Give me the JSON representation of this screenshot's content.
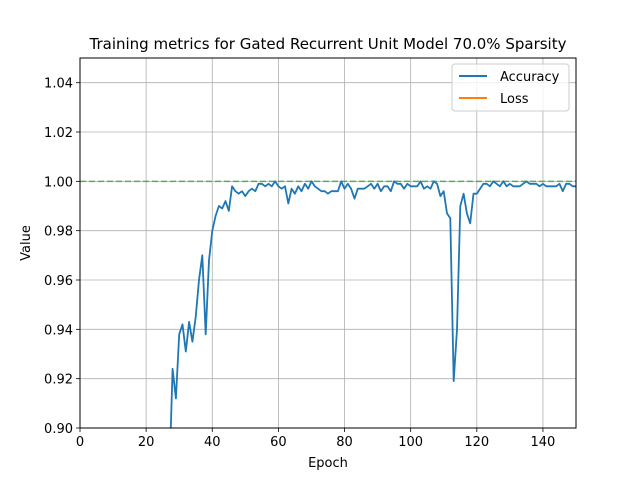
{
  "chart_data": {
    "type": "line",
    "title": "Training metrics for Gated Recurrent Unit Model 70.0% Sparsity",
    "xlabel": "Epoch",
    "ylabel": "Value",
    "xlim": [
      0,
      150
    ],
    "ylim": [
      0.9,
      1.05
    ],
    "xticks": [
      0,
      20,
      40,
      60,
      80,
      100,
      120,
      140
    ],
    "yticks": [
      0.9,
      0.92,
      0.94,
      0.96,
      0.98,
      1.0,
      1.02,
      1.04
    ],
    "grid": true,
    "legend_position": "top-right",
    "reference_line": {
      "y": 1.0,
      "color": "#2ca02c",
      "style": "dashed"
    },
    "series": [
      {
        "name": "Accuracy",
        "color": "#1f77b4",
        "points": [
          [
            27,
            0.88
          ],
          [
            28,
            0.924
          ],
          [
            29,
            0.912
          ],
          [
            30,
            0.938
          ],
          [
            31,
            0.942
          ],
          [
            32,
            0.931
          ],
          [
            33,
            0.943
          ],
          [
            34,
            0.935
          ],
          [
            35,
            0.945
          ],
          [
            36,
            0.96
          ],
          [
            37,
            0.97
          ],
          [
            38,
            0.938
          ],
          [
            39,
            0.968
          ],
          [
            40,
            0.98
          ],
          [
            41,
            0.986
          ],
          [
            42,
            0.99
          ],
          [
            43,
            0.989
          ],
          [
            44,
            0.992
          ],
          [
            45,
            0.988
          ],
          [
            46,
            0.998
          ],
          [
            47,
            0.996
          ],
          [
            48,
            0.995
          ],
          [
            49,
            0.996
          ],
          [
            50,
            0.994
          ],
          [
            51,
            0.996
          ],
          [
            52,
            0.997
          ],
          [
            53,
            0.996
          ],
          [
            54,
            0.999
          ],
          [
            55,
            0.999
          ],
          [
            56,
            0.998
          ],
          [
            57,
            0.999
          ],
          [
            58,
            0.998
          ],
          [
            59,
            1.0
          ],
          [
            60,
            0.998
          ],
          [
            61,
            0.997
          ],
          [
            62,
            0.998
          ],
          [
            63,
            0.991
          ],
          [
            64,
            0.997
          ],
          [
            65,
            0.995
          ],
          [
            66,
            0.998
          ],
          [
            67,
            0.996
          ],
          [
            68,
            0.999
          ],
          [
            69,
            0.997
          ],
          [
            70,
            1.0
          ],
          [
            71,
            0.998
          ],
          [
            72,
            0.997
          ],
          [
            73,
            0.996
          ],
          [
            74,
            0.996
          ],
          [
            75,
            0.995
          ],
          [
            76,
            0.996
          ],
          [
            77,
            0.996
          ],
          [
            78,
            0.996
          ],
          [
            79,
            1.0
          ],
          [
            80,
            0.997
          ],
          [
            81,
            0.999
          ],
          [
            82,
            0.997
          ],
          [
            83,
            0.993
          ],
          [
            84,
            0.997
          ],
          [
            85,
            0.997
          ],
          [
            86,
            0.997
          ],
          [
            87,
            0.998
          ],
          [
            88,
            0.999
          ],
          [
            89,
            0.997
          ],
          [
            90,
            0.999
          ],
          [
            91,
            0.996
          ],
          [
            92,
            0.998
          ],
          [
            93,
            0.998
          ],
          [
            94,
            0.996
          ],
          [
            95,
            1.0
          ],
          [
            96,
            0.999
          ],
          [
            97,
            0.999
          ],
          [
            98,
            0.997
          ],
          [
            99,
            0.999
          ],
          [
            100,
            0.998
          ],
          [
            101,
            0.998
          ],
          [
            102,
            0.998
          ],
          [
            103,
            1.0
          ],
          [
            104,
            0.997
          ],
          [
            105,
            0.998
          ],
          [
            106,
            0.997
          ],
          [
            107,
            1.0
          ],
          [
            108,
            0.999
          ],
          [
            109,
            0.994
          ],
          [
            110,
            0.996
          ],
          [
            111,
            0.987
          ],
          [
            112,
            0.985
          ],
          [
            113,
            0.919
          ],
          [
            114,
            0.94
          ],
          [
            115,
            0.99
          ],
          [
            116,
            0.995
          ],
          [
            117,
            0.987
          ],
          [
            118,
            0.983
          ],
          [
            119,
            0.995
          ],
          [
            120,
            0.995
          ],
          [
            121,
            0.997
          ],
          [
            122,
            0.999
          ],
          [
            123,
            0.999
          ],
          [
            124,
            0.998
          ],
          [
            125,
            1.0
          ],
          [
            126,
            0.999
          ],
          [
            127,
            0.998
          ],
          [
            128,
            1.0
          ],
          [
            129,
            0.998
          ],
          [
            130,
            0.999
          ],
          [
            131,
            0.998
          ],
          [
            132,
            0.998
          ],
          [
            133,
            0.998
          ],
          [
            134,
            0.999
          ],
          [
            135,
            1.0
          ],
          [
            136,
            0.999
          ],
          [
            137,
            0.999
          ],
          [
            138,
            0.999
          ],
          [
            139,
            0.998
          ],
          [
            140,
            0.999
          ],
          [
            141,
            0.998
          ],
          [
            142,
            0.998
          ],
          [
            143,
            0.998
          ],
          [
            144,
            0.998
          ],
          [
            145,
            0.999
          ],
          [
            146,
            0.996
          ],
          [
            147,
            0.999
          ],
          [
            148,
            0.999
          ],
          [
            149,
            0.998
          ],
          [
            150,
            0.998
          ]
        ]
      },
      {
        "name": "Loss",
        "color": "#ff7f0e",
        "points": []
      }
    ]
  }
}
